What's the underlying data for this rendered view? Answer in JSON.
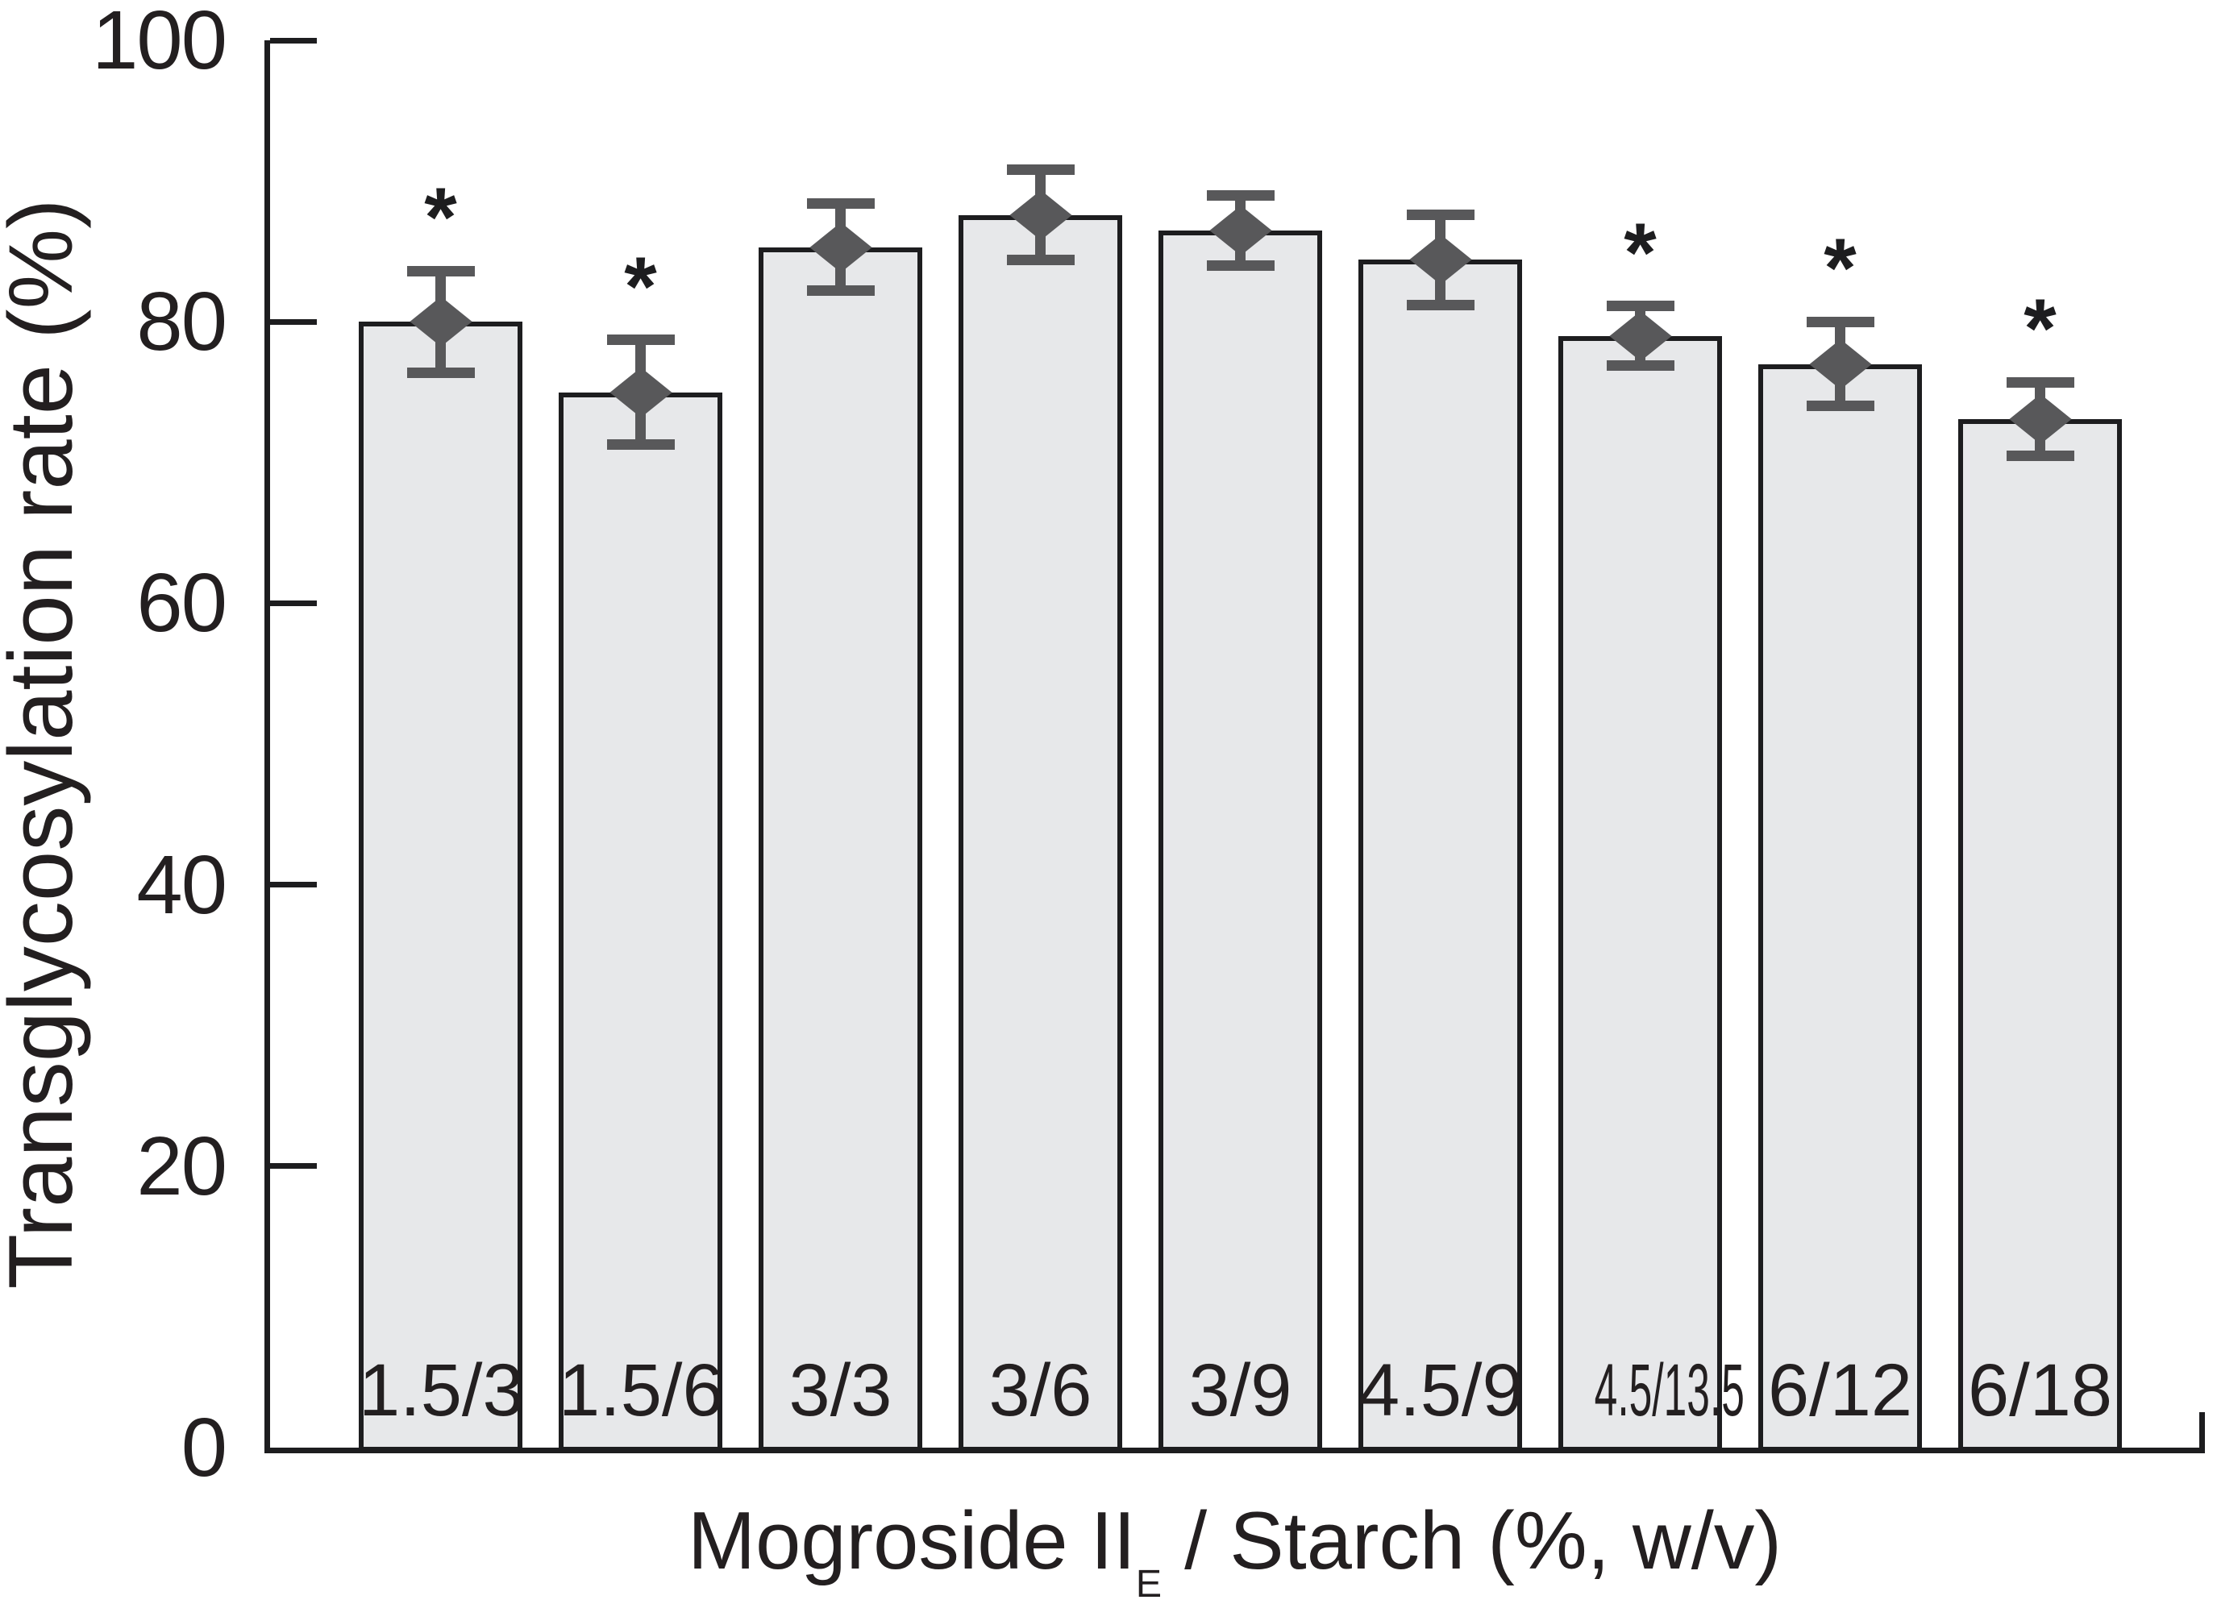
{
  "colors": {
    "background": "#ffffff",
    "bar_fill": "#e7e8ea",
    "bar_border": "#1d1d1f",
    "axis": "#1d1d1f",
    "marker": "#58585a",
    "text": "#231f20"
  },
  "chart_data": {
    "type": "bar",
    "title": "",
    "categories": [
      "1.5/3",
      "1.5/6",
      "3/3",
      "3/6",
      "3/9",
      "4.5/9",
      "4.5/13.5",
      "6/12",
      "6/18"
    ],
    "values": [
      80.0,
      75.0,
      85.3,
      87.6,
      86.5,
      84.4,
      79.0,
      77.0,
      73.1
    ],
    "errors": [
      3.6,
      3.7,
      3.1,
      3.2,
      2.5,
      3.2,
      2.1,
      3.0,
      2.6
    ],
    "significant": [
      true,
      true,
      false,
      false,
      false,
      false,
      true,
      true,
      true
    ],
    "sig_marker": "*",
    "marker_shape": "diamond",
    "ylabel": "Transglycosylation rate (%)",
    "xlabel_parts": [
      "Mogroside II",
      "E",
      " / Starch (%, w/v)"
    ],
    "ylim": [
      0,
      100
    ],
    "yticks": [
      0,
      20,
      40,
      60,
      80,
      100
    ],
    "grid": false,
    "legend": "none"
  }
}
